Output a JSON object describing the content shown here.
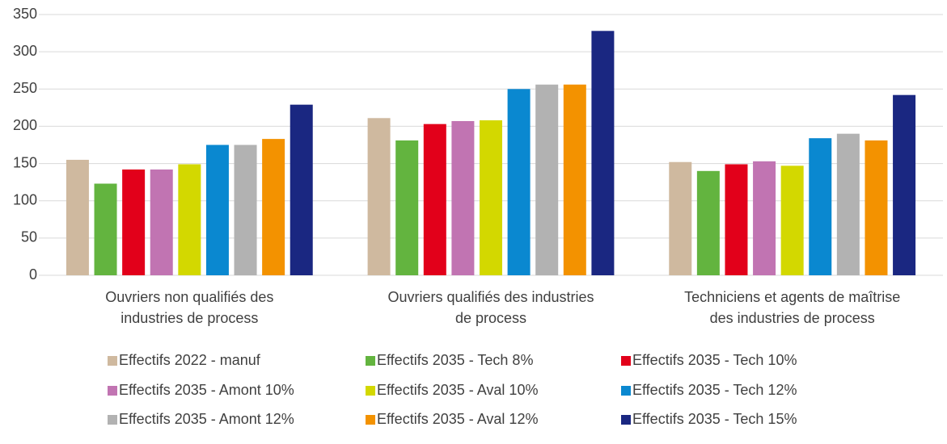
{
  "chart_data": {
    "type": "bar",
    "categories": [
      "Ouvriers non qualifiés des industries de process",
      "Ouvriers qualifiés des industries de process",
      "Techniciens et agents de maîtrise des industries de process"
    ],
    "series": [
      {
        "name": "Effectifs 2022 - manuf",
        "color": "#cfb99f",
        "values": [
          155,
          211,
          152
        ]
      },
      {
        "name": "Effectifs 2035 - Tech 8%",
        "color": "#63b43f",
        "values": [
          123,
          181,
          140
        ]
      },
      {
        "name": "Effectifs 2035 - Tech 10%",
        "color": "#e2001a",
        "values": [
          142,
          203,
          149
        ]
      },
      {
        "name": "Effectifs 2035 - Amont 10%",
        "color": "#c174b2",
        "values": [
          142,
          207,
          153
        ]
      },
      {
        "name": "Effectifs 2035 - Aval 10%",
        "color": "#d3d800",
        "values": [
          149,
          208,
          147
        ]
      },
      {
        "name": "Effectifs 2035 - Tech 12%",
        "color": "#0a88d0",
        "values": [
          175,
          250,
          184
        ]
      },
      {
        "name": "Effectifs 2035 - Amont 12%",
        "color": "#b2b2b2",
        "values": [
          175,
          256,
          190
        ]
      },
      {
        "name": "Effectifs 2035 - Aval 12%",
        "color": "#f39200",
        "values": [
          183,
          256,
          181
        ]
      },
      {
        "name": "Effectifs 2035 - Tech 15%",
        "color": "#1a2781",
        "values": [
          229,
          328,
          242
        ]
      }
    ],
    "ylim": [
      0,
      350
    ],
    "yticks": [
      0,
      50,
      100,
      150,
      200,
      250,
      300,
      350
    ],
    "grid": true,
    "legend": "bottom"
  }
}
